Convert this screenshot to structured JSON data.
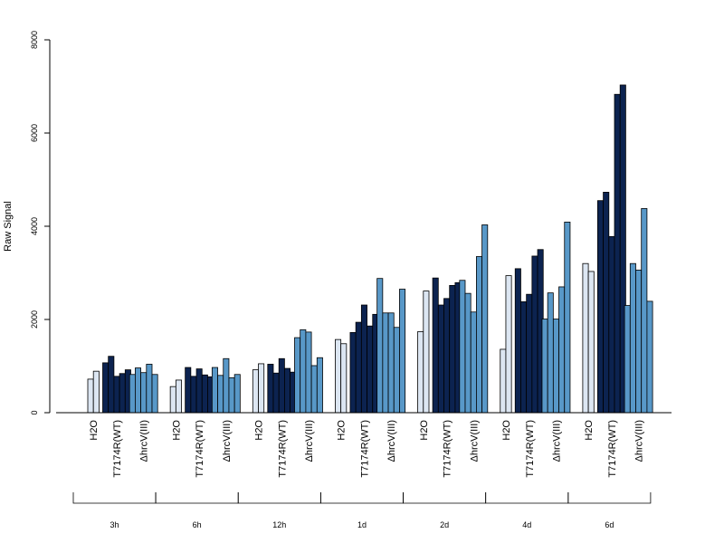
{
  "chart_data": {
    "type": "bar",
    "ylabel": "Raw Signal",
    "ylim": [
      0,
      8000
    ],
    "yticks": [
      "0",
      "2000",
      "4000",
      "6000",
      "8000"
    ],
    "colors": {
      "H2O": "#dce6f2",
      "T7174R(WT)": "#0c2350",
      "ΔhrcV(III)": "#5898c8"
    },
    "groups": [
      {
        "label": "3h",
        "conditions": [
          {
            "label": "H2O",
            "values": [
              720,
              890
            ]
          },
          {
            "label": "T7174R(WT)",
            "values": [
              1070,
              1210,
              780,
              840,
              920
            ]
          },
          {
            "label": "ΔhrcV(III)",
            "values": [
              820,
              960,
              860,
              1040,
              820
            ]
          }
        ]
      },
      {
        "label": "6h",
        "conditions": [
          {
            "label": "H2O",
            "values": [
              560,
              700
            ]
          },
          {
            "label": "T7174R(WT)",
            "values": [
              970,
              780,
              940,
              810,
              770
            ]
          },
          {
            "label": "ΔhrcV(III)",
            "values": [
              970,
              800,
              1160,
              750,
              820
            ]
          }
        ]
      },
      {
        "label": "12h",
        "conditions": [
          {
            "label": "H2O",
            "values": [
              920,
              1050
            ]
          },
          {
            "label": "T7174R(WT)",
            "values": [
              1040,
              850,
              1160,
              950,
              870
            ]
          },
          {
            "label": "ΔhrcV(III)",
            "values": [
              1610,
              1780,
              1730,
              1010,
              1180
            ]
          }
        ]
      },
      {
        "label": "1d",
        "conditions": [
          {
            "label": "H2O",
            "values": [
              1570,
              1480
            ]
          },
          {
            "label": "T7174R(WT)",
            "values": [
              1720,
              1940,
              2310,
              1860,
              2110
            ]
          },
          {
            "label": "ΔhrcV(III)",
            "values": [
              2880,
              2140,
              2140,
              1830,
              2650
            ]
          }
        ]
      },
      {
        "label": "2d",
        "conditions": [
          {
            "label": "H2O",
            "values": [
              1740,
              2610
            ]
          },
          {
            "label": "T7174R(WT)",
            "values": [
              2890,
              2310,
              2450,
              2730,
              2790
            ]
          },
          {
            "label": "ΔhrcV(III)",
            "values": [
              2840,
              2560,
              2160,
              3350,
              4030
            ]
          }
        ]
      },
      {
        "label": "4d",
        "conditions": [
          {
            "label": "H2O",
            "values": [
              1360,
              2940
            ]
          },
          {
            "label": "T7174R(WT)",
            "values": [
              3090,
              2380,
              2540,
              3360,
              3500
            ]
          },
          {
            "label": "ΔhrcV(III)",
            "values": [
              2010,
              2570,
              2010,
              2700,
              4090
            ]
          }
        ]
      },
      {
        "label": "6d",
        "conditions": [
          {
            "label": "H2O",
            "values": [
              3200,
              3030
            ]
          },
          {
            "label": "T7174R(WT)",
            "values": [
              4550,
              4730,
              3780,
              6830,
              7030
            ]
          },
          {
            "label": "ΔhrcV(III)",
            "values": [
              2300,
              3200,
              3060,
              4380,
              2390
            ]
          }
        ]
      }
    ]
  }
}
